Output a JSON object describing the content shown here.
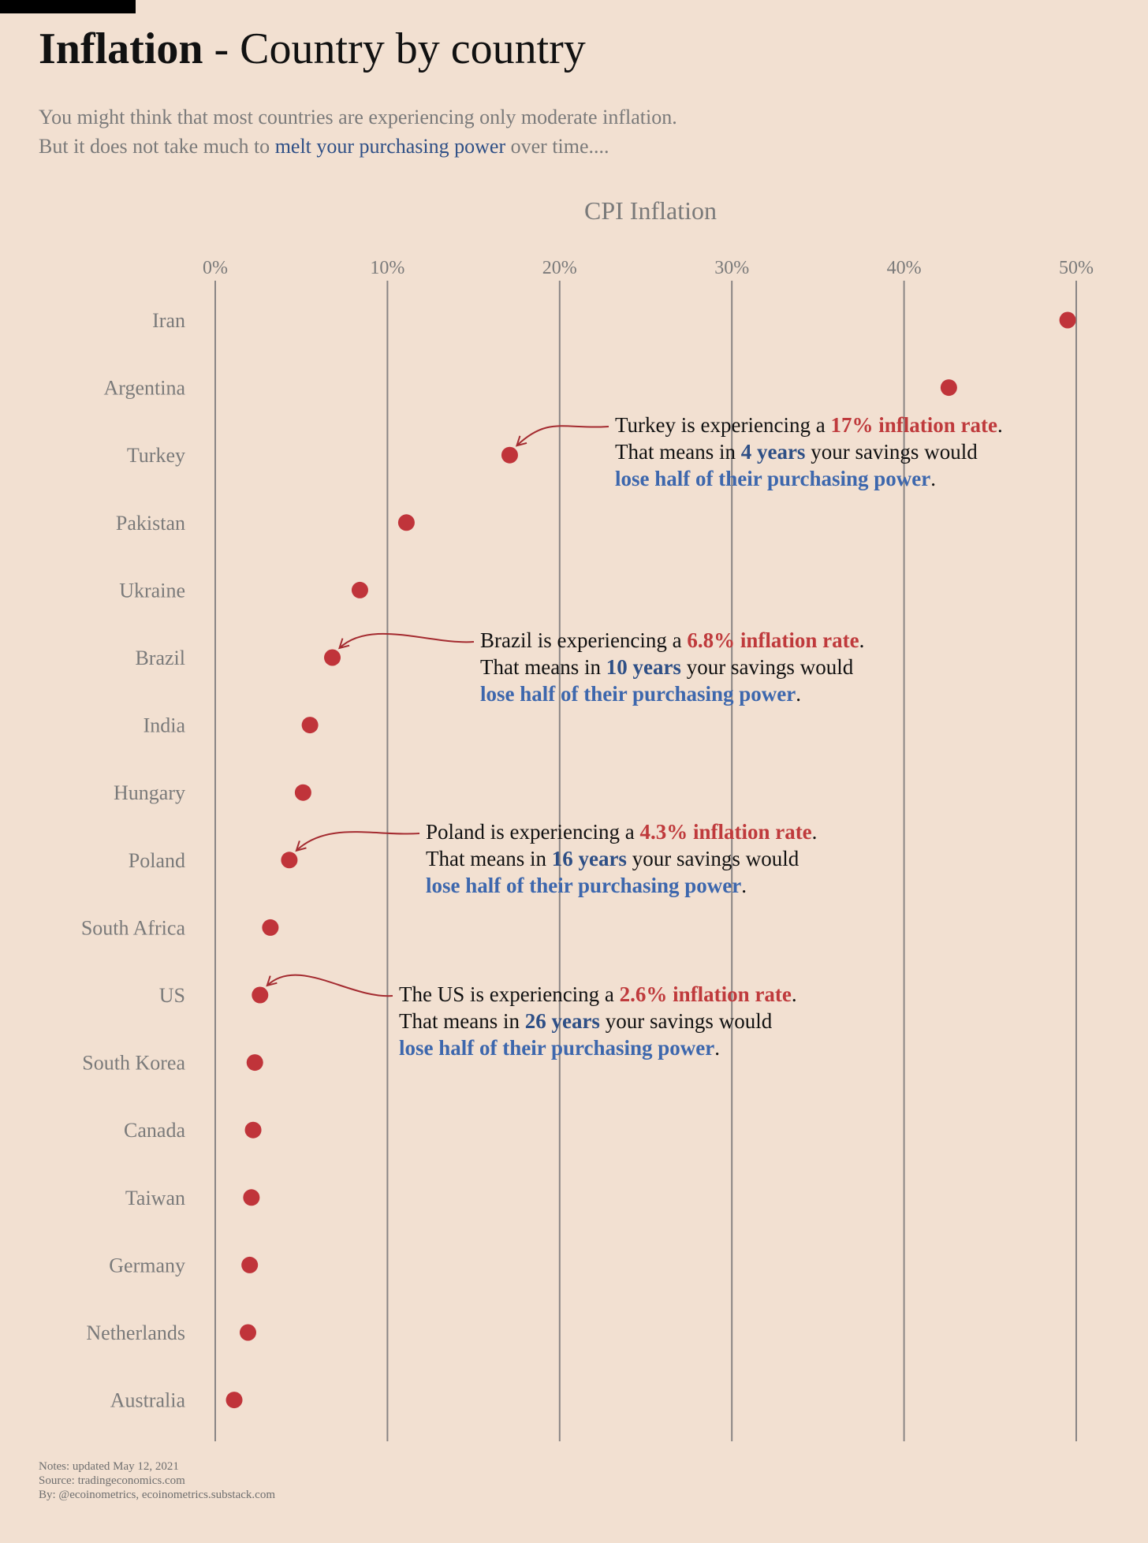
{
  "header": {
    "title_bold": "Inflation",
    "title_rest": " - Country by country",
    "subtitle_line1": "You might think that most countries are experiencing only moderate inflation.",
    "subtitle_line2_pre": "But it does not take much to ",
    "subtitle_line2_highlight": "melt your purchasing power",
    "subtitle_line2_post": " over time...."
  },
  "chart_data": {
    "type": "scatter",
    "title": "CPI Inflation",
    "xlabel": "CPI Inflation",
    "ylabel": "",
    "xlim": [
      0,
      50
    ],
    "x_ticks": [
      0,
      10,
      20,
      30,
      40,
      50
    ],
    "x_tick_labels": [
      "0%",
      "10%",
      "20%",
      "30%",
      "40%",
      "50%"
    ],
    "grid": true,
    "categories": [
      "Iran",
      "Argentina",
      "Turkey",
      "Pakistan",
      "Ukraine",
      "Brazil",
      "India",
      "Hungary",
      "Poland",
      "South Africa",
      "US",
      "South Korea",
      "Canada",
      "Taiwan",
      "Germany",
      "Netherlands",
      "Australia"
    ],
    "values": [
      49.5,
      42.6,
      17.1,
      11.1,
      8.4,
      6.8,
      5.5,
      5.1,
      4.3,
      3.2,
      2.6,
      2.3,
      2.2,
      2.1,
      2.0,
      1.9,
      1.1
    ],
    "point_color": "#c0343a"
  },
  "annotations": [
    {
      "country": "Turkey",
      "pre": "Turkey is experiencing a ",
      "rate": "17% inflation rate",
      "l2_pre": "That means in ",
      "years": "4 years",
      "l2_post": " your savings would",
      "line3": "lose half of their purchasing power",
      "end": "."
    },
    {
      "country": "Brazil",
      "pre": "Brazil is experiencing a ",
      "rate": "6.8% inflation rate",
      "l2_pre": "That means in ",
      "years": "10 years",
      "l2_post": " your savings would",
      "line3": "lose half of their purchasing power",
      "end": "."
    },
    {
      "country": "Poland",
      "pre": "Poland is experiencing a ",
      "rate": "4.3% inflation rate",
      "l2_pre": "That means in ",
      "years": "16 years",
      "l2_post": " your savings would",
      "line3": "lose half of their purchasing power",
      "end": "."
    },
    {
      "country": "US",
      "pre": "The US is experiencing a ",
      "rate": "2.6% inflation rate",
      "l2_pre": "That means in ",
      "years": "26 years",
      "l2_post": " your savings would",
      "line3": "lose half of their purchasing power",
      "end": "."
    }
  ],
  "footer": {
    "notes": "Notes: updated May 12, 2021",
    "source": "Source: tradingeconomics.com",
    "by": "By: @ecoinometrics, ecoinometrics.substack.com"
  },
  "colors": {
    "background": "#f2e0d1",
    "dot": "#c0343a",
    "rate_red": "#bf3a3c",
    "years_navy": "#2e4f86",
    "power_blue": "#3d67ad"
  }
}
